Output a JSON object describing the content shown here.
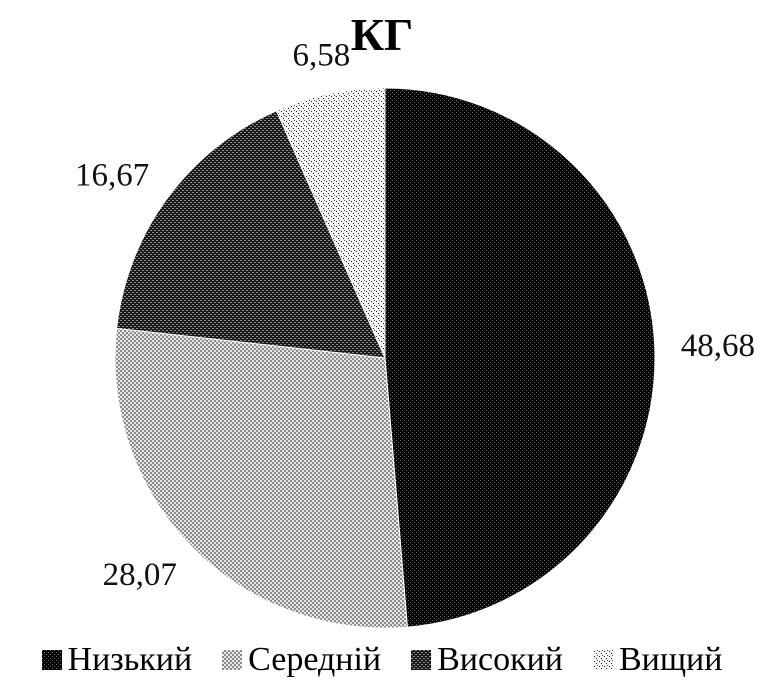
{
  "chart_data": {
    "type": "pie",
    "title": "КГ",
    "categories": [
      "Низький",
      "Середній",
      "Високий",
      "Вищий"
    ],
    "values": [
      48.68,
      28.07,
      16.67,
      6.58
    ],
    "value_labels": [
      "48,68",
      "28,07",
      "16,67",
      "6,58"
    ],
    "start_angle": "12 o'clock",
    "direction": "clockwise",
    "legend_position": "bottom",
    "colors": [
      "#0a0a0a",
      "#b3b3b3",
      "#3a3a3a",
      "#e8e8e8"
    ]
  }
}
